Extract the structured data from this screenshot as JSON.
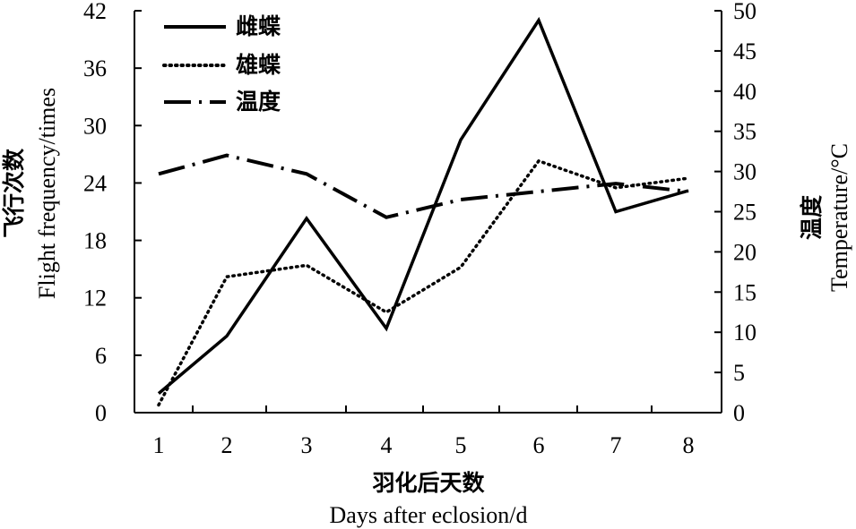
{
  "chart_data": {
    "type": "line",
    "x": [
      1,
      2,
      3,
      4,
      5,
      6,
      7,
      8
    ],
    "categories": [
      "1",
      "2",
      "3",
      "4",
      "5",
      "6",
      "7",
      "8"
    ],
    "xlabel_cn": "羽化后天数",
    "xlabel_en": "Days after eclosion/d",
    "ylabel_left_cn": "飞行次数",
    "ylabel_left_en": "Flight frequency/times",
    "ylabel_right_cn": "温度",
    "ylabel_right_en": "Temperature/°C",
    "y_left": {
      "lim": [
        0,
        42
      ],
      "ticks": [
        0,
        6,
        12,
        18,
        24,
        30,
        36,
        42
      ]
    },
    "y_right": {
      "lim": [
        0,
        50
      ],
      "ticks": [
        0,
        5,
        10,
        15,
        20,
        25,
        30,
        35,
        40,
        45,
        50
      ]
    },
    "grid": false,
    "legend_position": "top-left",
    "series": [
      {
        "name": "雌蝶",
        "axis": "left",
        "style": "solid",
        "color": "#000000",
        "values": [
          2,
          8,
          20.3,
          8.8,
          28.5,
          41,
          21,
          23.2
        ]
      },
      {
        "name": "雄蝶",
        "axis": "left",
        "style": "dotted",
        "color": "#000000",
        "values": [
          0.8,
          14.2,
          15.4,
          10.5,
          15.2,
          26.3,
          23.5,
          24.5
        ]
      },
      {
        "name": "温度",
        "axis": "right",
        "style": "dash-dot",
        "color": "#000000",
        "values": [
          29.7,
          32,
          29.7,
          24.3,
          26.5,
          27.5,
          28.5,
          27.5
        ]
      }
    ]
  }
}
